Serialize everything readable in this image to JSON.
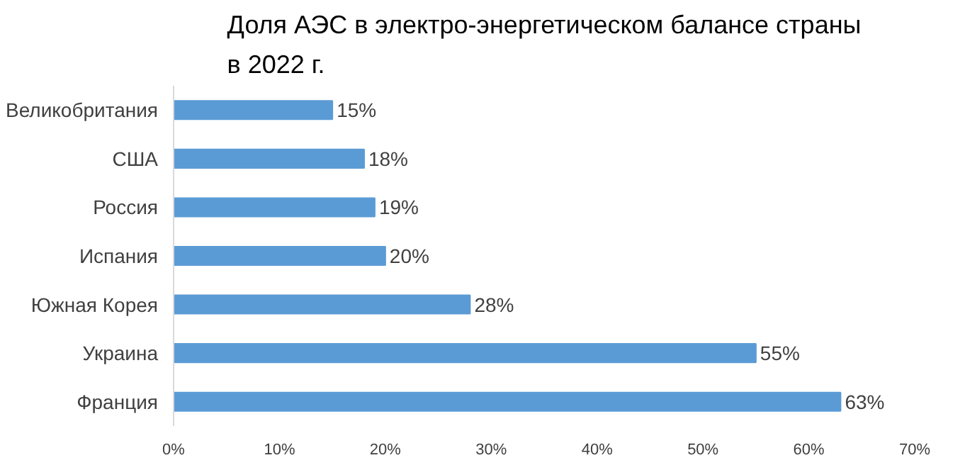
{
  "chart_data": {
    "type": "bar",
    "orientation": "horizontal",
    "title": "Доля АЭС в электро-энергетическом балансе страны в 2022 г.",
    "categories": [
      "Великобритания",
      "США",
      "Россия",
      "Испания",
      "Южная Корея",
      "Украина",
      "Франция"
    ],
    "values": [
      15,
      18,
      19,
      20,
      28,
      55,
      63
    ],
    "value_labels": [
      "15%",
      "18%",
      "19%",
      "20%",
      "28%",
      "55%",
      "63%"
    ],
    "color": "#5b9bd5",
    "xlim": [
      0,
      70
    ],
    "xticks": [
      {
        "value": 0,
        "label": "0%"
      },
      {
        "value": 10,
        "label": "10%"
      },
      {
        "value": 20,
        "label": "20%"
      },
      {
        "value": 30,
        "label": "30%"
      },
      {
        "value": 40,
        "label": "40%"
      },
      {
        "value": 50,
        "label": "50%"
      },
      {
        "value": 60,
        "label": "60%"
      },
      {
        "value": 70,
        "label": "70%"
      }
    ],
    "grid": false
  }
}
